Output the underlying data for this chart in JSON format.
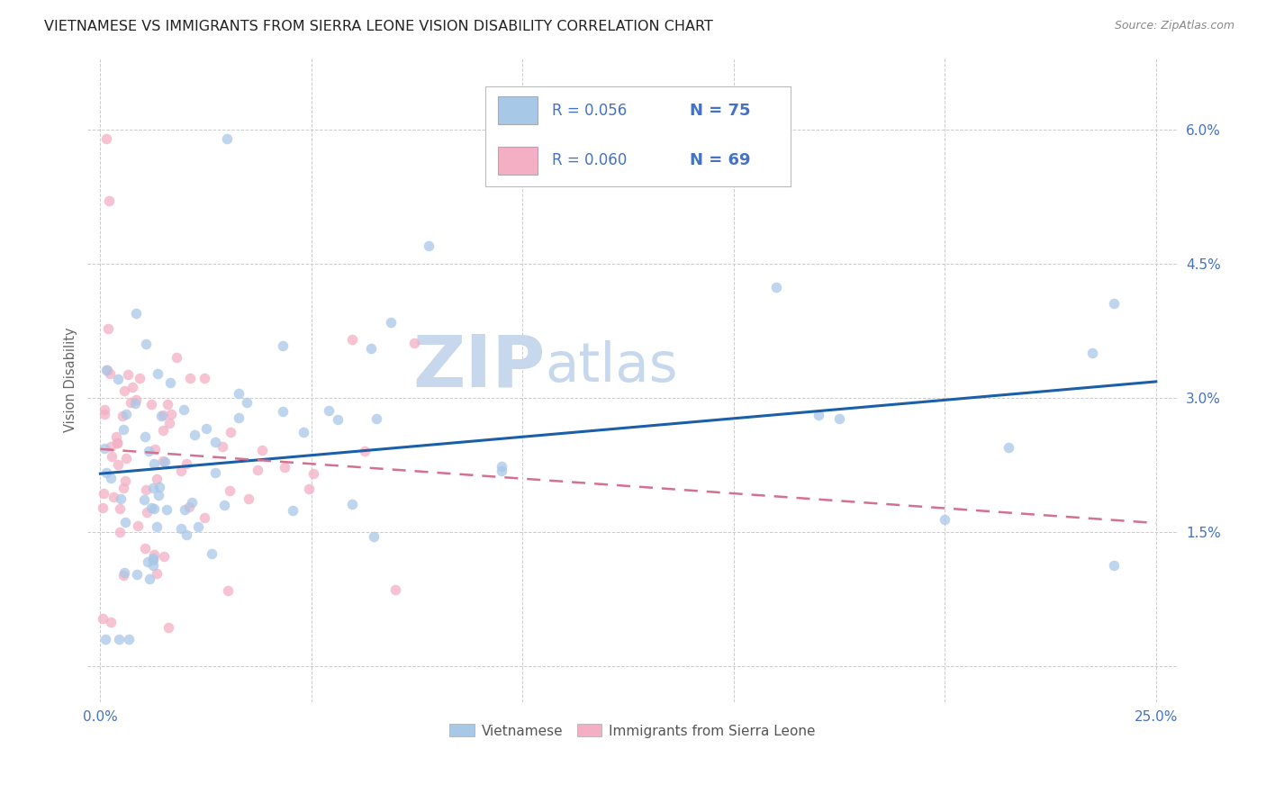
{
  "title": "VIETNAMESE VS IMMIGRANTS FROM SIERRA LEONE VISION DISABILITY CORRELATION CHART",
  "source": "Source: ZipAtlas.com",
  "ylabel": "Vision Disability",
  "xlim": [
    0.0,
    0.25
  ],
  "ylim": [
    0.0,
    0.065
  ],
  "xtick_positions": [
    0.0,
    0.05,
    0.1,
    0.15,
    0.2,
    0.25
  ],
  "ytick_positions": [
    0.0,
    0.015,
    0.03,
    0.045,
    0.06
  ],
  "ytick_labels": [
    "",
    "1.5%",
    "3.0%",
    "4.5%",
    "6.0%"
  ],
  "xtick_labels": [
    "0.0%",
    "",
    "",
    "",
    "",
    "25.0%"
  ],
  "background_color": "#ffffff",
  "title_color": "#222222",
  "title_fontsize": 11.5,
  "watermark_zip": "ZIP",
  "watermark_atlas": "atlas",
  "legend_text_color": "#4472c4",
  "legend_r_color": "#333333",
  "blue_scatter_color": "#a8c8e8",
  "pink_scatter_color": "#f4afc4",
  "blue_line_color": "#1a5fa8",
  "pink_line_color": "#d47090",
  "axis_tick_color": "#4472c4",
  "scatter_alpha": 0.75,
  "marker_size": 70,
  "grid_color": "#cccccc",
  "watermark_color": "#c8d8ec"
}
